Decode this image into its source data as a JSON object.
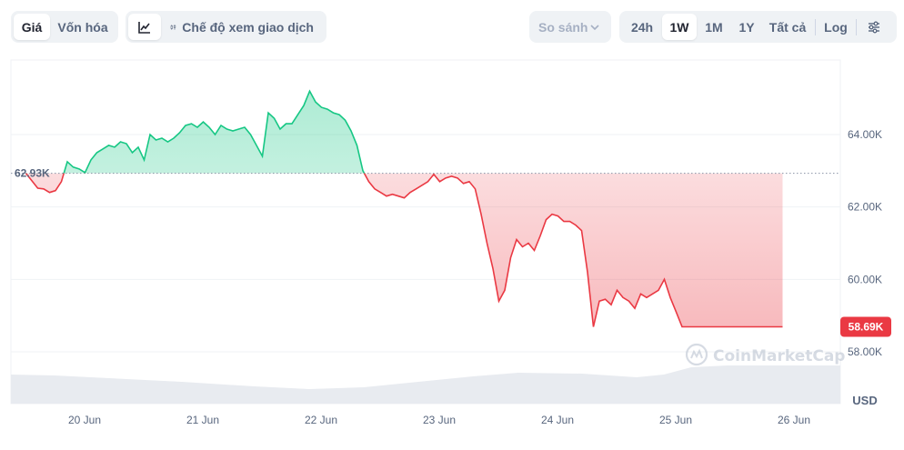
{
  "toolbar": {
    "view_tabs": [
      {
        "label": "Giá",
        "active": true
      },
      {
        "label": "Vốn hóa",
        "active": false
      }
    ],
    "chart_icon": "line-chart-icon",
    "trading_mode": {
      "icon": "candlestick-icon",
      "label": "Chế độ xem giao dịch"
    },
    "compare": {
      "label": "So sánh",
      "icon": "chevron-down-icon"
    },
    "ranges": [
      {
        "label": "24h",
        "active": false
      },
      {
        "label": "1W",
        "active": true
      },
      {
        "label": "1M",
        "active": false
      },
      {
        "label": "1Y",
        "active": false
      },
      {
        "label": "Tất cả",
        "active": false
      }
    ],
    "log_label": "Log",
    "settings_icon": "sliders-icon"
  },
  "watermark": {
    "text": "CoinMarketCap",
    "icon": "coinmarketcap-logo-icon"
  },
  "colors": {
    "up": "#16c784",
    "down": "#ea3943",
    "grid": "#eff2f5",
    "volume": "#e8ebf0"
  },
  "chart_data": {
    "type": "area",
    "x_ticks": [
      "20 Jun",
      "21 Jun",
      "22 Jun",
      "23 Jun",
      "24 Jun",
      "25 Jun",
      "26 Jun"
    ],
    "y_ticks": [
      "64.00K",
      "62.00K",
      "60.00K",
      "58.00K"
    ],
    "y_tick_values": [
      64000,
      62000,
      60000,
      58000
    ],
    "ylim": [
      57000,
      66000
    ],
    "unit_label": "USD",
    "baseline": {
      "value": 62930,
      "label": "62.93K"
    },
    "current": {
      "value": 58690,
      "label": "58.69K"
    },
    "grid": true,
    "series": [
      {
        "x": [
          0.0,
          0.1,
          0.15,
          0.2,
          0.25,
          0.3,
          0.35,
          0.4,
          0.45,
          0.5,
          0.55,
          0.6,
          0.65,
          0.7,
          0.75,
          0.8,
          0.85,
          0.9,
          0.95,
          1.0,
          1.05,
          1.1,
          1.15,
          1.2,
          1.25,
          1.3,
          1.35,
          1.4,
          1.45,
          1.5,
          1.55,
          1.6,
          1.65,
          1.7,
          1.75,
          1.8,
          1.85,
          1.9,
          1.95,
          2.0,
          2.05,
          2.1,
          2.15,
          2.2,
          2.25,
          2.3,
          2.35,
          2.4,
          2.45,
          2.5,
          2.55,
          2.6,
          2.65,
          2.7,
          2.75,
          2.8,
          2.85,
          2.9,
          2.95,
          3.0,
          3.05,
          3.1,
          3.15,
          3.2,
          3.25,
          3.3,
          3.35,
          3.4,
          3.45,
          3.5,
          3.55,
          3.6,
          3.65,
          3.7,
          3.75,
          3.8,
          3.85,
          3.9,
          3.95,
          4.0,
          4.05,
          4.1,
          4.15,
          4.2,
          4.25,
          4.3,
          4.35,
          4.4,
          4.45,
          4.5,
          4.55,
          4.6,
          4.65,
          4.7,
          4.75,
          4.8,
          4.85,
          4.9,
          4.95,
          5.0,
          5.05,
          5.1,
          5.15,
          5.2,
          5.25,
          5.3,
          5.35,
          5.4,
          5.45,
          5.5,
          5.55,
          5.6,
          5.65,
          5.7,
          5.75,
          5.8,
          5.85,
          5.9,
          5.95,
          6.0,
          6.05,
          6.1,
          6.15,
          6.2,
          6.25,
          6.3,
          6.35,
          6.4
        ],
        "values": [
          62930,
          62520,
          62500,
          62400,
          62450,
          62700,
          63250,
          63100,
          63050,
          62950,
          63300,
          63500,
          63600,
          63700,
          63650,
          63800,
          63750,
          63500,
          63650,
          63300,
          64000,
          63850,
          63900,
          63800,
          63900,
          64050,
          64250,
          64300,
          64200,
          64350,
          64200,
          64000,
          64250,
          64150,
          64100,
          64150,
          64200,
          64000,
          63700,
          63400,
          64600,
          64450,
          64150,
          64300,
          64300,
          64550,
          64800,
          65200,
          64900,
          64750,
          64700,
          64600,
          64550,
          64400,
          64100,
          63700,
          63000,
          62700,
          62500,
          62400,
          62300,
          62350,
          62300,
          62250,
          62400,
          62500,
          62600,
          62700,
          62900,
          62700,
          62800,
          62850,
          62800,
          62650,
          62700,
          62500,
          61800,
          61000,
          60300,
          59400,
          59700,
          60600,
          61100,
          60900,
          61000,
          60800,
          61200,
          61650,
          61800,
          61750,
          61600,
          61600,
          61500,
          61350,
          60200,
          58690,
          59400,
          59450,
          59300,
          59700,
          59500,
          59400,
          59200,
          59600,
          59500,
          59600,
          59700,
          60000,
          59500,
          59100,
          58690,
          58690,
          58690,
          58690,
          58690,
          58690,
          58690,
          58690,
          58690,
          58690,
          58690,
          58690,
          58690,
          58690,
          58690,
          58690,
          58690,
          58690
        ]
      }
    ]
  }
}
